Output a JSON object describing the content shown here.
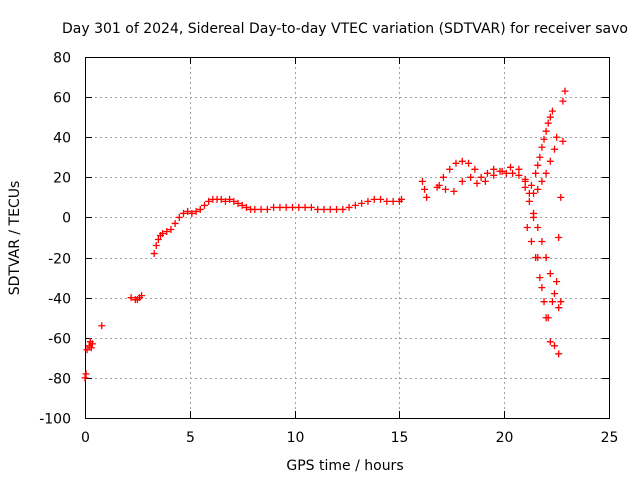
{
  "chart_data": {
    "type": "scatter",
    "title": "Day 301 of 2024, Sidereal Day-to-day VTEC variation (SDTVAR) for receiver savo",
    "xlabel": "GPS time / hours",
    "ylabel": "SDTVAR / TECUs",
    "xlim": [
      0,
      25
    ],
    "ylim": [
      -100,
      80
    ],
    "x_ticks": [
      "0",
      "5",
      "10",
      "15",
      "20",
      "25"
    ],
    "y_ticks": [
      "-100",
      "-80",
      "-60",
      "-40",
      "-20",
      "0",
      "20",
      "40",
      "60",
      "80"
    ],
    "grid": true,
    "marker": "+",
    "color": "#ff0000",
    "series": [
      {
        "name": "savo",
        "x": [
          0.0,
          0.05,
          0.1,
          0.2,
          0.25,
          0.3,
          0.35,
          0.8,
          2.2,
          2.4,
          2.5,
          2.6,
          2.7,
          3.3,
          3.4,
          3.5,
          3.6,
          3.7,
          3.9,
          4.1,
          4.3,
          4.5,
          4.7,
          4.9,
          5.1,
          5.3,
          5.5,
          5.7,
          5.9,
          6.1,
          6.3,
          6.5,
          6.7,
          6.9,
          7.1,
          7.3,
          7.5,
          7.7,
          7.9,
          8.1,
          8.4,
          8.7,
          9.0,
          9.3,
          9.6,
          9.9,
          10.2,
          10.5,
          10.8,
          11.1,
          11.4,
          11.7,
          12.0,
          12.3,
          12.6,
          12.9,
          13.2,
          13.5,
          13.8,
          14.1,
          14.4,
          14.7,
          15.0,
          15.1,
          16.1,
          16.2,
          16.3,
          16.9,
          17.1,
          17.4,
          17.7,
          18.0,
          18.3,
          18.6,
          18.9,
          19.2,
          19.5,
          19.8,
          20.1,
          20.4,
          20.7,
          21.0,
          21.2,
          21.4,
          21.6,
          21.8,
          22.0,
          22.2,
          22.4,
          22.6,
          22.8,
          22.9,
          16.8,
          17.2,
          17.6,
          18.0,
          18.4,
          18.7,
          19.1,
          19.5,
          19.9,
          20.3,
          20.7,
          21.0,
          21.3,
          21.5,
          21.6,
          21.7,
          21.8,
          21.9,
          22.0,
          22.1,
          22.2,
          22.3,
          21.1,
          21.3,
          21.5,
          21.7,
          21.9,
          22.1,
          22.3,
          22.5,
          22.6,
          22.7,
          22.8,
          21.0,
          21.2,
          21.4,
          21.6,
          21.8,
          22.0,
          22.2,
          22.4,
          22.6,
          22.7,
          21.4,
          21.6,
          21.8,
          22.0,
          22.2,
          22.4,
          22.5
        ],
        "y": [
          -80,
          -78,
          -66,
          -64,
          -62,
          -65,
          -63,
          -54,
          -40,
          -41,
          -41,
          -40,
          -39,
          -18,
          -14,
          -11,
          -9,
          -8,
          -7,
          -6,
          -3,
          0,
          2,
          3,
          2,
          3,
          4,
          6,
          8,
          9,
          9,
          9,
          8,
          9,
          8,
          7,
          6,
          5,
          4,
          4,
          4,
          4,
          5,
          5,
          5,
          5,
          5,
          5,
          5,
          4,
          4,
          4,
          4,
          4,
          5,
          6,
          7,
          8,
          9,
          9,
          8,
          8,
          8,
          9,
          18,
          14,
          10,
          16,
          20,
          24,
          27,
          28,
          27,
          24,
          20,
          22,
          24,
          23,
          22,
          22,
          21,
          18,
          12,
          0,
          -20,
          -35,
          -50,
          -62,
          -64,
          -68,
          58,
          63,
          15,
          14,
          13,
          18,
          20,
          17,
          18,
          21,
          23,
          25,
          24,
          19,
          16,
          22,
          26,
          30,
          35,
          39,
          43,
          47,
          50,
          53,
          -5,
          -12,
          -20,
          -30,
          -42,
          -50,
          -42,
          -32,
          -10,
          10,
          38,
          15,
          8,
          2,
          -5,
          -12,
          -20,
          -28,
          -38,
          -45,
          -42,
          12,
          14,
          18,
          22,
          28,
          34,
          40
        ]
      }
    ]
  }
}
